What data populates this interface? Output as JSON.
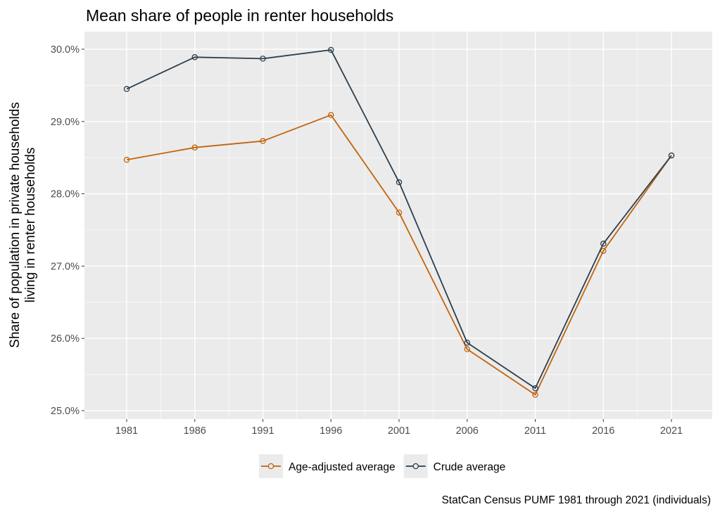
{
  "chart_data": {
    "type": "line",
    "title": "Mean share of people in renter households",
    "ylabel": "Share of population in private households\nliving in renter households",
    "xlabel": "",
    "caption": "StatCan Census PUMF 1981 through 2021 (individuals)",
    "x": [
      1981,
      1986,
      1991,
      1996,
      2001,
      2006,
      2011,
      2016,
      2021
    ],
    "xticks": [
      "1981",
      "1986",
      "1991",
      "1996",
      "2001",
      "2006",
      "2011",
      "2016",
      "2021"
    ],
    "ylim": [
      24.9,
      30.2
    ],
    "yticks": [
      25,
      26,
      27,
      28,
      29,
      30
    ],
    "ytick_labels": [
      "25.0%",
      "26.0%",
      "27.0%",
      "28.0%",
      "29.0%",
      "30.0%"
    ],
    "grid": true,
    "legend_position": "bottom",
    "series": [
      {
        "name": "Age-adjusted average",
        "color": "#c0650c",
        "values": [
          28.47,
          28.64,
          28.73,
          29.09,
          27.74,
          25.85,
          25.22,
          27.21,
          28.53
        ]
      },
      {
        "name": "Crude average",
        "color": "#2b3f4f",
        "values": [
          29.45,
          29.89,
          29.87,
          29.99,
          28.16,
          25.94,
          25.31,
          27.31,
          28.53
        ]
      }
    ]
  }
}
